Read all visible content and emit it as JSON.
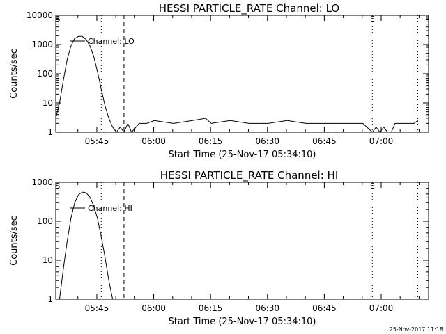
{
  "chart_data": [
    {
      "type": "line",
      "title": "HESSI PARTICLE_RATE Channel: LO",
      "xlabel": "Start Time (25-Nov-17 05:34:10)",
      "ylabel": "Counts/sec",
      "yscale": "log",
      "ylim": [
        1,
        10000
      ],
      "xlim": [
        "05:34:10",
        "07:12:30"
      ],
      "x_ticks": [
        "05:45",
        "06:00",
        "06:15",
        "06:30",
        "06:45",
        "07:00"
      ],
      "y_ticks": [
        "1",
        "10",
        "100",
        "1000",
        "10000"
      ],
      "legend": "Channel: LO",
      "legend_position": "top-left",
      "markers": [
        {
          "label": "S",
          "time": "05:34:40",
          "style": "text"
        },
        {
          "label": "E",
          "time": "06:57:40",
          "style": "text"
        },
        {
          "label": "",
          "time": "05:46:10",
          "style": "dotted"
        },
        {
          "label": "",
          "time": "05:52:10",
          "style": "dashed"
        },
        {
          "label": "",
          "time": "06:57:40",
          "style": "dotted"
        },
        {
          "label": "",
          "time": "07:09:40",
          "style": "dotted"
        }
      ],
      "series": [
        {
          "name": "Channel: LO",
          "x": [
            "05:34:10",
            "05:35:10",
            "05:36:10",
            "05:37:10",
            "05:38:10",
            "05:39:10",
            "05:40:10",
            "05:41:10",
            "05:42:10",
            "05:43:10",
            "05:44:10",
            "05:45:10",
            "05:46:10",
            "05:47:10",
            "05:48:10",
            "05:49:10",
            "05:50:10",
            "05:51:10",
            "05:52:10",
            "05:53:10",
            "05:54:10",
            "05:56:10",
            "05:58:10",
            "06:00:10",
            "06:05:10",
            "06:10:10",
            "06:13:40",
            "06:15:10",
            "06:20:10",
            "06:25:10",
            "06:30:10",
            "06:35:10",
            "06:40:10",
            "06:45:10",
            "06:50:10",
            "06:55:10",
            "06:57:40",
            "06:58:40",
            "06:59:40",
            "07:00:40",
            "07:01:40",
            "07:02:40",
            "07:03:40",
            "07:05:40",
            "07:08:40",
            "07:09:40"
          ],
          "y": [
            3,
            10,
            60,
            300,
            900,
            1600,
            1900,
            1900,
            1500,
            900,
            400,
            120,
            30,
            8,
            3,
            1.5,
            1,
            1.5,
            1,
            2,
            1,
            2,
            2,
            2.5,
            2,
            2.5,
            3,
            2,
            2.5,
            2,
            2,
            2.5,
            2,
            2,
            2,
            2,
            1,
            1.5,
            1,
            1.5,
            1,
            1,
            2,
            2,
            2,
            2.5
          ]
        }
      ]
    },
    {
      "type": "line",
      "title": "HESSI PARTICLE_RATE Channel: HI",
      "xlabel": "Start Time (25-Nov-17 05:34:10)",
      "ylabel": "Counts/sec",
      "yscale": "log",
      "ylim": [
        1,
        1000
      ],
      "xlim": [
        "05:34:10",
        "07:12:30"
      ],
      "x_ticks": [
        "05:45",
        "06:00",
        "06:15",
        "06:30",
        "06:45",
        "07:00"
      ],
      "y_ticks": [
        "1",
        "10",
        "100",
        "1000"
      ],
      "legend": "Channel: HI",
      "legend_position": "top-left",
      "markers": [
        {
          "label": "S",
          "time": "05:34:40",
          "style": "text"
        },
        {
          "label": "E",
          "time": "06:57:40",
          "style": "text"
        },
        {
          "label": "",
          "time": "05:46:10",
          "style": "dotted"
        },
        {
          "label": "",
          "time": "05:52:10",
          "style": "dashed"
        },
        {
          "label": "",
          "time": "06:57:40",
          "style": "dotted"
        },
        {
          "label": "",
          "time": "07:09:40",
          "style": "dotted"
        }
      ],
      "series": [
        {
          "name": "Channel: HI",
          "x": [
            "05:35:10",
            "05:36:10",
            "05:37:10",
            "05:38:10",
            "05:39:10",
            "05:40:10",
            "05:41:10",
            "05:42:10",
            "05:43:10",
            "05:44:10",
            "05:45:10",
            "05:46:10",
            "05:47:10",
            "05:48:10",
            "05:49:10"
          ],
          "y": [
            1,
            6,
            30,
            120,
            300,
            480,
            560,
            540,
            420,
            250,
            120,
            40,
            12,
            3,
            1
          ]
        }
      ]
    }
  ],
  "footer": {
    "stamp": "25-Nov-2017 11:18"
  }
}
